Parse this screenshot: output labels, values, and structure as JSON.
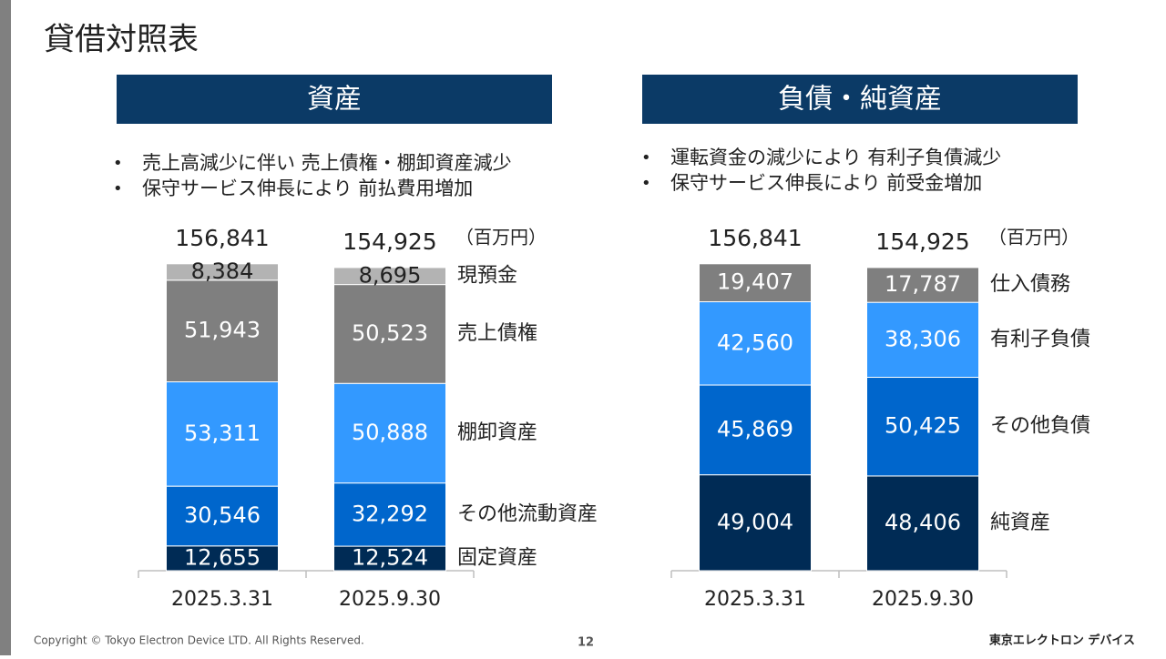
{
  "title": "貸借対照表",
  "footer": {
    "copyright": "Copyright © Tokyo Electron Device LTD. All Rights Reserved.",
    "page_number": "12",
    "logo": "東京エレクトロン デバイス"
  },
  "chart_data": [
    {
      "type": "stacked_bar",
      "header": "資産",
      "bullets": [
        "売上高減少に伴い 売上債権・棚卸資産減少",
        "保守サービス伸長により 前払費用増加"
      ],
      "unit": "（百万円）",
      "categories": [
        "2025.3.31",
        "2025.9.30"
      ],
      "ylim": [
        0,
        160000
      ],
      "totals": {
        "values": [
          156841,
          154925
        ],
        "value_labels": [
          "156,841",
          "154,925"
        ]
      },
      "series": [
        {
          "name": "固定資産",
          "color": "#002b55",
          "label_color": "#ffffff",
          "values": [
            12655,
            12524
          ],
          "value_labels": [
            "12,655",
            "12,524"
          ]
        },
        {
          "name": "その他流動資産",
          "color": "#0066cc",
          "label_color": "#ffffff",
          "values": [
            30546,
            32292
          ],
          "value_labels": [
            "30,546",
            "32,292"
          ]
        },
        {
          "name": "棚卸資産",
          "color": "#3399ff",
          "label_color": "#ffffff",
          "values": [
            53311,
            50888
          ],
          "value_labels": [
            "53,311",
            "50,888"
          ]
        },
        {
          "name": "売上債権",
          "color": "#7f7f7f",
          "label_color": "#ffffff",
          "values": [
            51943,
            50523
          ],
          "value_labels": [
            "51,943",
            "50,523"
          ]
        },
        {
          "name": "現預金",
          "color": "#b3b3b3",
          "label_color": "#222222",
          "values": [
            8384,
            8695
          ],
          "value_labels": [
            "8,384",
            "8,695"
          ]
        }
      ]
    },
    {
      "type": "stacked_bar",
      "header": "負債・純資産",
      "bullets": [
        "運転資金の減少により 有利子負債減少",
        "保守サービス伸長により 前受金増加"
      ],
      "unit": "（百万円）",
      "categories": [
        "2025.3.31",
        "2025.9.30"
      ],
      "ylim": [
        0,
        160000
      ],
      "totals": {
        "values": [
          156841,
          154925
        ],
        "value_labels": [
          "156,841",
          "154,925"
        ]
      },
      "series": [
        {
          "name": "純資産",
          "color": "#002b55",
          "label_color": "#ffffff",
          "values": [
            49004,
            48406
          ],
          "value_labels": [
            "49,004",
            "48,406"
          ]
        },
        {
          "name": "その他負債",
          "color": "#0066cc",
          "label_color": "#ffffff",
          "values": [
            45869,
            50425
          ],
          "value_labels": [
            "45,869",
            "50,425"
          ]
        },
        {
          "name": "有利子負債",
          "color": "#3399ff",
          "label_color": "#ffffff",
          "values": [
            42560,
            38306
          ],
          "value_labels": [
            "42,560",
            "38,306"
          ]
        },
        {
          "name": "仕入債務",
          "color": "#7f7f7f",
          "label_color": "#ffffff",
          "values": [
            19407,
            17787
          ],
          "value_labels": [
            "19,407",
            "17,787"
          ]
        }
      ]
    }
  ]
}
